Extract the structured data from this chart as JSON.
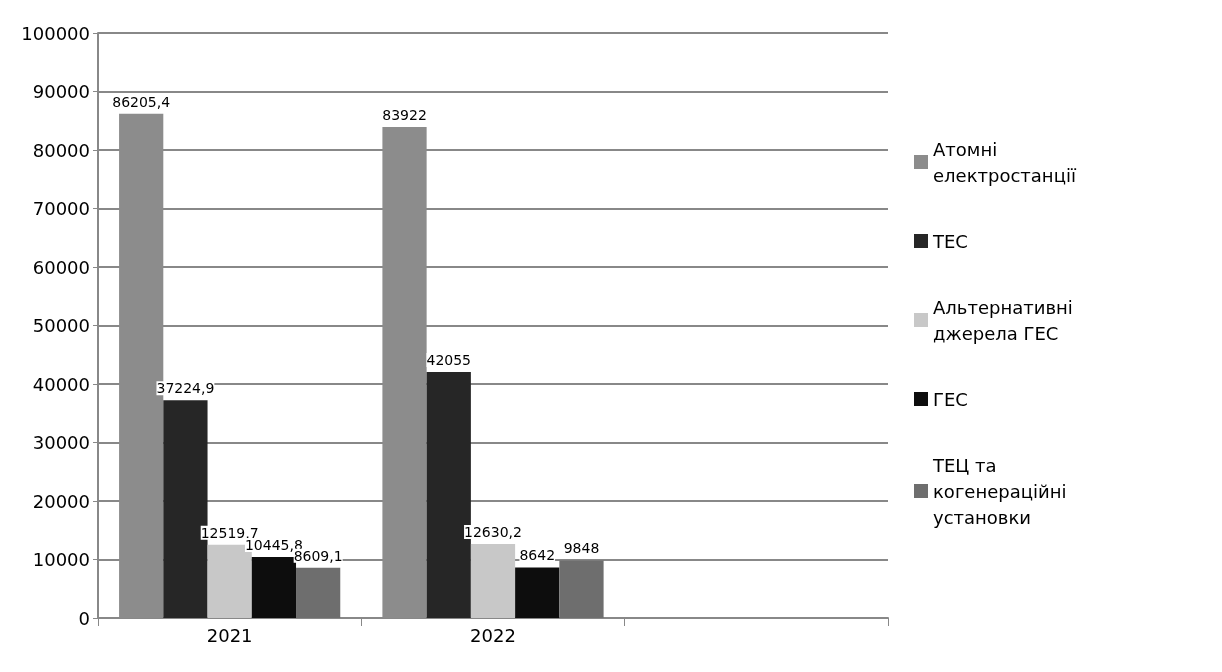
{
  "chart_data": {
    "type": "bar",
    "categories": [
      "2021",
      "2022",
      null
    ],
    "series": [
      {
        "name": "Атомні електростанції",
        "color": "#8c8c8c",
        "values": [
          86205.4,
          83922,
          null
        ],
        "value_labels": [
          "86205,4",
          "83922",
          null
        ]
      },
      {
        "name": "ТЕС",
        "color": "#262626",
        "values": [
          37224.9,
          42055,
          null
        ],
        "value_labels": [
          "37224,9",
          "42055",
          null
        ]
      },
      {
        "name": "Альтернативні джерела ГЕС",
        "color": "#c8c8c8",
        "values": [
          12519.7,
          12630.2,
          null
        ],
        "value_labels": [
          "12519,7",
          "12630,2",
          null
        ]
      },
      {
        "name": "ГЕС",
        "color": "#0d0d0d",
        "values": [
          10445.8,
          8642,
          null
        ],
        "value_labels": [
          "10445,8",
          "8642",
          null
        ]
      },
      {
        "name": "ТЕЦ та когенераційні установки",
        "color": "#6e6e6e",
        "values": [
          8609.1,
          9848,
          null
        ],
        "value_labels": [
          "8609,1",
          "9848",
          null
        ]
      }
    ],
    "ylim": [
      0,
      100000
    ],
    "yticks": [
      0,
      10000,
      20000,
      30000,
      40000,
      50000,
      60000,
      70000,
      80000,
      90000,
      100000
    ],
    "grid": "y",
    "legend": "right"
  }
}
